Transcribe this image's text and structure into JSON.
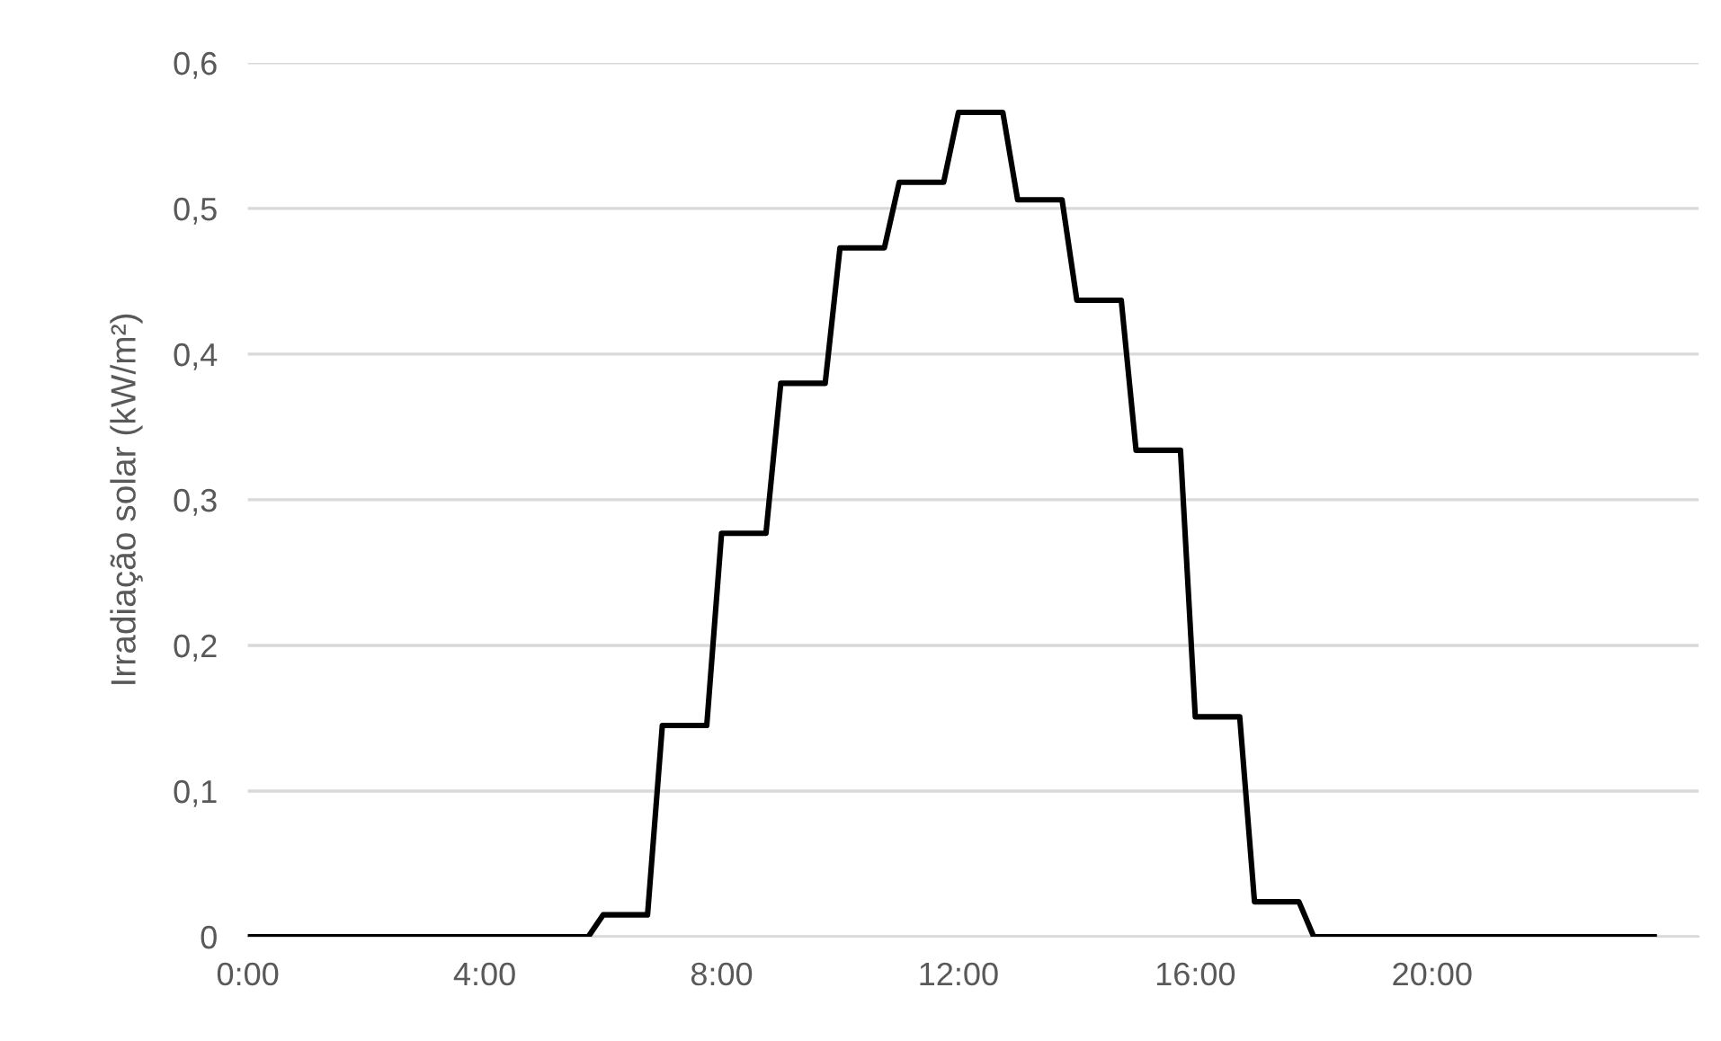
{
  "chart_data": {
    "type": "line",
    "ylabel": "Irradiação solar (kW/m²)",
    "x": [
      0,
      5.75,
      6,
      6.75,
      7,
      7.75,
      8,
      8.75,
      9,
      9.75,
      10,
      10.75,
      11,
      11.75,
      12,
      12.75,
      13,
      13.75,
      14,
      14.75,
      15,
      15.75,
      16,
      16.75,
      17,
      17.75,
      18,
      23.75
    ],
    "series": [
      {
        "color": "#000000",
        "values": [
          0,
          0,
          0.015,
          0.015,
          0.145,
          0.145,
          0.277,
          0.277,
          0.38,
          0.38,
          0.473,
          0.473,
          0.518,
          0.518,
          0.566,
          0.566,
          0.506,
          0.506,
          0.437,
          0.437,
          0.334,
          0.334,
          0.151,
          0.151,
          0.024,
          0.024,
          0,
          0
        ]
      }
    ],
    "xlim": [
      0,
      24.5
    ],
    "xticks": [
      {
        "value": 0,
        "label": "0:00"
      },
      {
        "value": 4,
        "label": "4:00"
      },
      {
        "value": 8,
        "label": "8:00"
      },
      {
        "value": 12,
        "label": "12:00"
      },
      {
        "value": 16,
        "label": "16:00"
      },
      {
        "value": 20,
        "label": "20:00"
      }
    ],
    "ylim": [
      0,
      0.6
    ],
    "yticks": [
      0,
      {
        "value": 0.1,
        "label": "0,1"
      },
      {
        "value": 0.2,
        "label": "0,2"
      },
      {
        "value": 0.3,
        "label": "0,3"
      },
      {
        "value": 0.4,
        "label": "0,4"
      },
      {
        "value": 0.5,
        "label": "0,5"
      },
      {
        "value": 0.6,
        "label": "0,6"
      }
    ],
    "grid": "y",
    "marker": "none",
    "line_style": "solid"
  }
}
